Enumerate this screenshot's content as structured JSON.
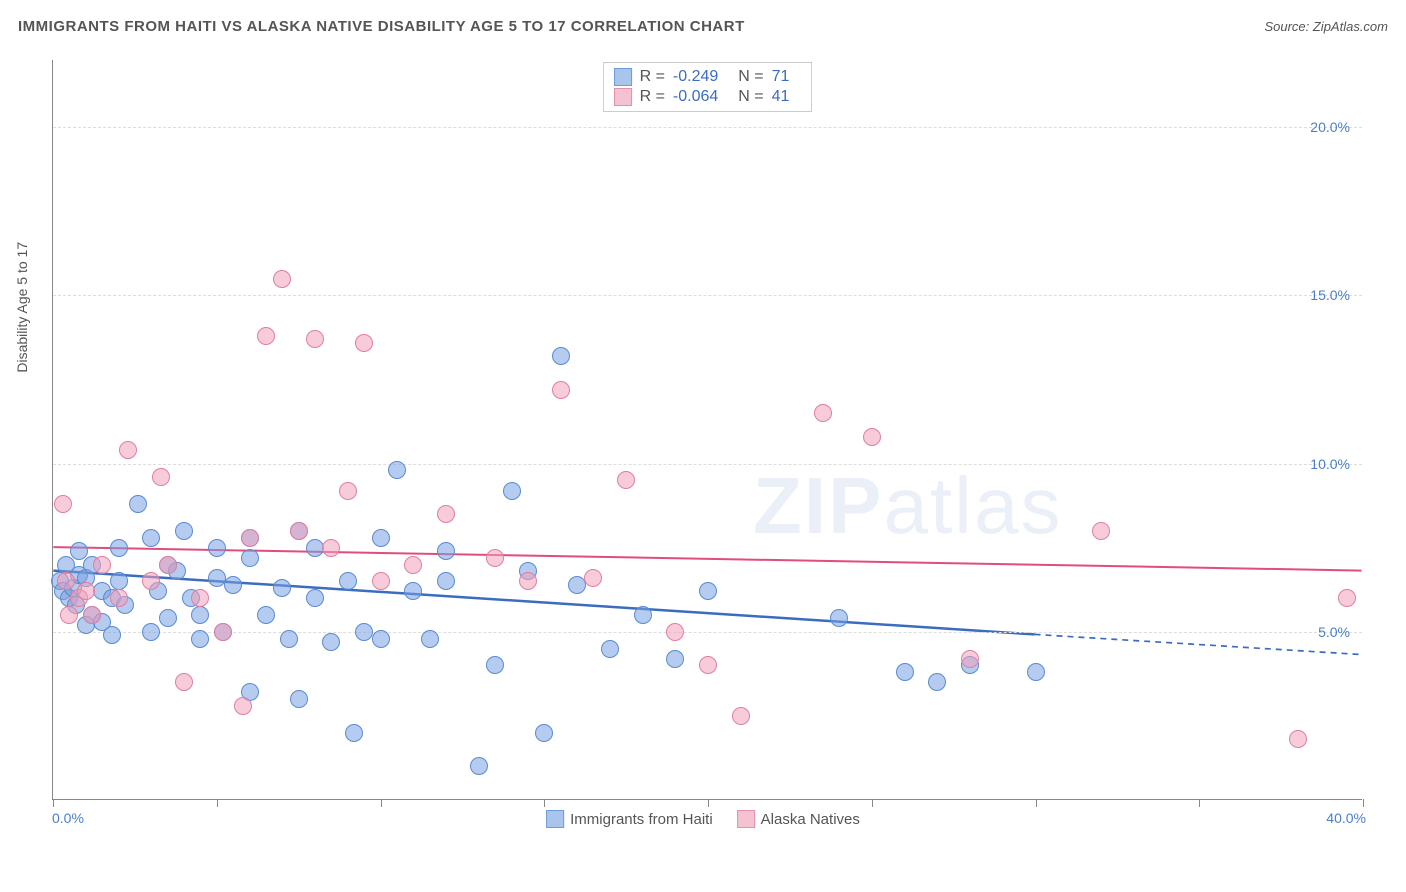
{
  "header": {
    "title": "IMMIGRANTS FROM HAITI VS ALASKA NATIVE DISABILITY AGE 5 TO 17 CORRELATION CHART",
    "source_label": "Source: ",
    "source_value": "ZipAtlas.com"
  },
  "chart": {
    "type": "scatter",
    "ylabel": "Disability Age 5 to 17",
    "background_color": "#ffffff",
    "grid_color": "#dddddd",
    "axis_color": "#888888",
    "tick_label_color": "#4a7fc8",
    "xlim": [
      0,
      40
    ],
    "ylim": [
      0,
      22
    ],
    "ytick_labels": [
      {
        "v": 5.0,
        "label": "5.0%"
      },
      {
        "v": 10.0,
        "label": "10.0%"
      },
      {
        "v": 15.0,
        "label": "15.0%"
      },
      {
        "v": 20.0,
        "label": "20.0%"
      }
    ],
    "xtick_positions": [
      0,
      5,
      10,
      15,
      20,
      25,
      30,
      35,
      40
    ],
    "xmin_label": "0.0%",
    "xmax_label": "40.0%",
    "series": [
      {
        "name": "Immigrants from Haiti",
        "color_fill": "rgba(120,160,225,0.55)",
        "color_stroke": "#5a8bd0",
        "swatch_fill": "#aac5ec",
        "swatch_stroke": "#6b9bd8",
        "marker_radius": 9,
        "R": "-0.249",
        "N": "71",
        "trend": {
          "x1": 0,
          "y1": 6.8,
          "x2": 30,
          "y2": 4.9,
          "x2_dash": 40,
          "y2_dash": 4.3,
          "color": "#3b6cc0",
          "width": 2.5
        },
        "points": [
          [
            0.2,
            6.5
          ],
          [
            0.3,
            6.2
          ],
          [
            0.4,
            7.0
          ],
          [
            0.5,
            6.0
          ],
          [
            0.6,
            6.3
          ],
          [
            0.7,
            5.8
          ],
          [
            0.8,
            6.7
          ],
          [
            0.8,
            7.4
          ],
          [
            1.0,
            5.2
          ],
          [
            1.0,
            6.6
          ],
          [
            1.2,
            5.5
          ],
          [
            1.2,
            7.0
          ],
          [
            1.5,
            5.3
          ],
          [
            1.5,
            6.2
          ],
          [
            1.8,
            4.9
          ],
          [
            1.8,
            6.0
          ],
          [
            2.0,
            6.5
          ],
          [
            2.0,
            7.5
          ],
          [
            2.2,
            5.8
          ],
          [
            2.6,
            8.8
          ],
          [
            3.0,
            5.0
          ],
          [
            3.0,
            7.8
          ],
          [
            3.2,
            6.2
          ],
          [
            3.5,
            5.4
          ],
          [
            3.5,
            7.0
          ],
          [
            3.8,
            6.8
          ],
          [
            4.0,
            8.0
          ],
          [
            4.2,
            6.0
          ],
          [
            4.5,
            4.8
          ],
          [
            4.5,
            5.5
          ],
          [
            5.0,
            7.5
          ],
          [
            5.0,
            6.6
          ],
          [
            5.2,
            5.0
          ],
          [
            5.5,
            6.4
          ],
          [
            6.0,
            3.2
          ],
          [
            6.0,
            7.2
          ],
          [
            6.0,
            7.8
          ],
          [
            6.5,
            5.5
          ],
          [
            7.0,
            6.3
          ],
          [
            7.2,
            4.8
          ],
          [
            7.5,
            3.0
          ],
          [
            7.5,
            8.0
          ],
          [
            8.0,
            6.0
          ],
          [
            8.0,
            7.5
          ],
          [
            8.5,
            4.7
          ],
          [
            9.0,
            6.5
          ],
          [
            9.2,
            2.0
          ],
          [
            9.5,
            5.0
          ],
          [
            10.0,
            4.8
          ],
          [
            10.0,
            7.8
          ],
          [
            10.5,
            9.8
          ],
          [
            11.0,
            6.2
          ],
          [
            11.5,
            4.8
          ],
          [
            12.0,
            6.5
          ],
          [
            12.0,
            7.4
          ],
          [
            13.0,
            1.0
          ],
          [
            13.5,
            4.0
          ],
          [
            14.0,
            9.2
          ],
          [
            14.5,
            6.8
          ],
          [
            15.0,
            2.0
          ],
          [
            15.5,
            13.2
          ],
          [
            16.0,
            6.4
          ],
          [
            17.0,
            4.5
          ],
          [
            18.0,
            5.5
          ],
          [
            19.0,
            4.2
          ],
          [
            20.0,
            6.2
          ],
          [
            24.0,
            5.4
          ],
          [
            26.0,
            3.8
          ],
          [
            27.0,
            3.5
          ],
          [
            28.0,
            4.0
          ],
          [
            30.0,
            3.8
          ]
        ]
      },
      {
        "name": "Alaska Natives",
        "color_fill": "rgba(240,160,185,0.55)",
        "color_stroke": "#e07fa0",
        "swatch_fill": "#f5c2d1",
        "swatch_stroke": "#e58fab",
        "marker_radius": 9,
        "R": "-0.064",
        "N": "41",
        "trend": {
          "x1": 0,
          "y1": 7.5,
          "x2": 40,
          "y2": 6.8,
          "x2_dash": 40,
          "y2_dash": 6.8,
          "color": "#e04c7e",
          "width": 2
        },
        "points": [
          [
            0.3,
            8.8
          ],
          [
            0.4,
            6.5
          ],
          [
            0.5,
            5.5
          ],
          [
            0.8,
            6.0
          ],
          [
            1.0,
            6.2
          ],
          [
            1.2,
            5.5
          ],
          [
            1.5,
            7.0
          ],
          [
            2.0,
            6.0
          ],
          [
            2.3,
            10.4
          ],
          [
            3.0,
            6.5
          ],
          [
            3.3,
            9.6
          ],
          [
            3.5,
            7.0
          ],
          [
            4.0,
            3.5
          ],
          [
            4.5,
            6.0
          ],
          [
            5.2,
            5.0
          ],
          [
            5.8,
            2.8
          ],
          [
            6.0,
            7.8
          ],
          [
            6.5,
            13.8
          ],
          [
            7.0,
            15.5
          ],
          [
            7.5,
            8.0
          ],
          [
            8.0,
            13.7
          ],
          [
            8.5,
            7.5
          ],
          [
            9.0,
            9.2
          ],
          [
            9.5,
            13.6
          ],
          [
            10.0,
            6.5
          ],
          [
            11.0,
            7.0
          ],
          [
            12.0,
            8.5
          ],
          [
            13.5,
            7.2
          ],
          [
            14.5,
            6.5
          ],
          [
            15.5,
            12.2
          ],
          [
            16.5,
            6.6
          ],
          [
            17.5,
            9.5
          ],
          [
            19.0,
            5.0
          ],
          [
            20.0,
            4.0
          ],
          [
            21.0,
            2.5
          ],
          [
            23.5,
            11.5
          ],
          [
            25.0,
            10.8
          ],
          [
            28.0,
            4.2
          ],
          [
            32.0,
            8.0
          ],
          [
            38.0,
            1.8
          ],
          [
            39.5,
            6.0
          ]
        ]
      }
    ],
    "watermark_part1": "ZIP",
    "watermark_part2": "atlas"
  }
}
